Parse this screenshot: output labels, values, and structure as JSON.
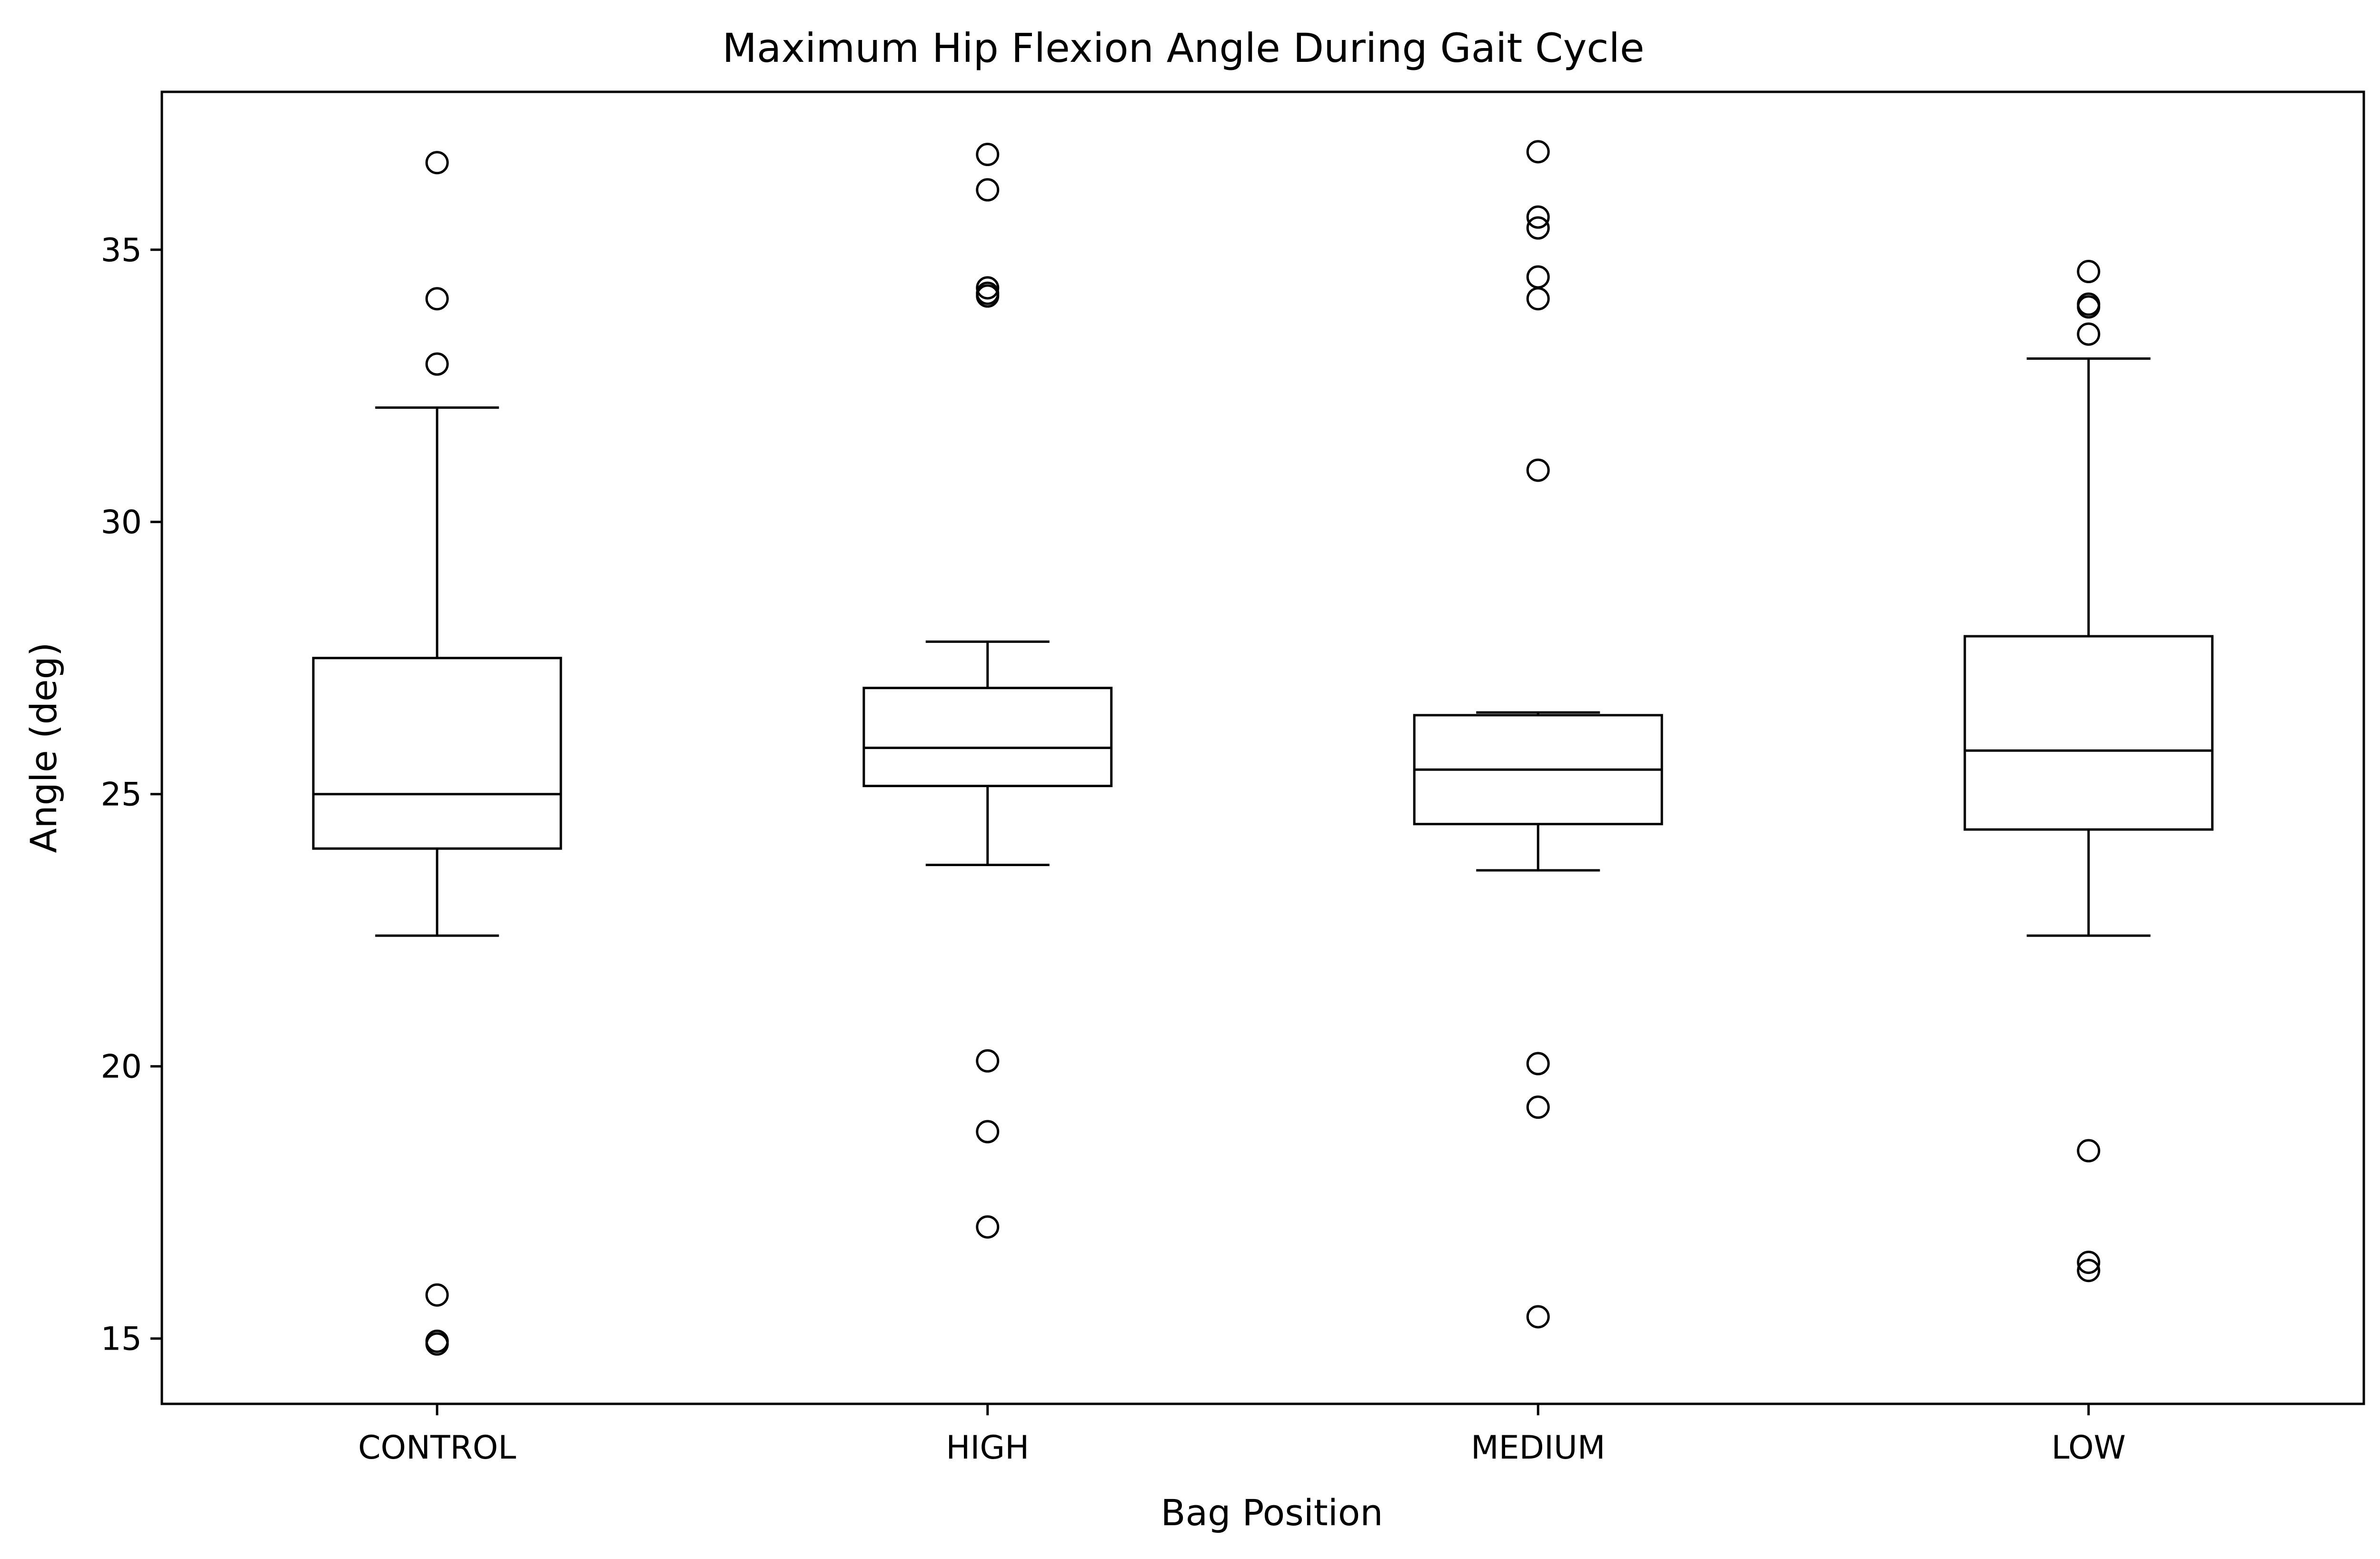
{
  "chart_data": {
    "type": "box",
    "title": "Maximum Hip Flexion Angle During Gait Cycle",
    "xlabel": "Bag Position",
    "ylabel": "Angle (deg)",
    "ylim": [
      13.8,
      37.9
    ],
    "yticks": [
      15,
      20,
      25,
      30,
      35
    ],
    "grid": false,
    "categories": [
      "CONTROL",
      "HIGH",
      "MEDIUM",
      "LOW"
    ],
    "boxes": [
      {
        "category": "CONTROL",
        "whisker_low": 22.4,
        "q1": 24.0,
        "median": 25.0,
        "q3": 27.5,
        "whisker_high": 32.1,
        "outliers": [
          36.6,
          34.1,
          32.9,
          15.8,
          14.95,
          14.9
        ]
      },
      {
        "category": "HIGH",
        "whisker_low": 23.7,
        "q1": 25.15,
        "median": 25.85,
        "q3": 26.95,
        "whisker_high": 27.8,
        "outliers": [
          36.75,
          36.1,
          34.3,
          34.2,
          34.15,
          20.1,
          18.8,
          17.05
        ]
      },
      {
        "category": "MEDIUM",
        "whisker_low": 23.6,
        "q1": 24.45,
        "median": 25.45,
        "q3": 26.45,
        "whisker_high": 26.5,
        "outliers": [
          36.8,
          35.6,
          35.4,
          34.5,
          34.1,
          30.95,
          20.05,
          19.25,
          15.4
        ]
      },
      {
        "category": "LOW",
        "whisker_low": 22.4,
        "q1": 24.35,
        "median": 25.8,
        "q3": 27.9,
        "whisker_high": 33.0,
        "outliers": [
          34.6,
          34.0,
          33.95,
          33.45,
          18.45,
          16.4,
          16.25
        ]
      }
    ]
  },
  "style": {
    "line_color": "#000000",
    "box_fill": "#ffffff",
    "background": "#ffffff"
  }
}
